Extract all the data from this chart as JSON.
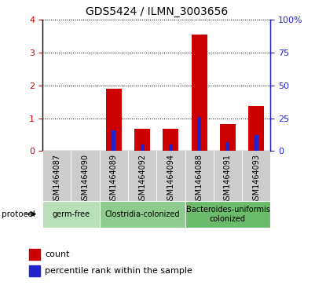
{
  "title": "GDS5424 / ILMN_3003656",
  "samples": [
    "GSM1464087",
    "GSM1464090",
    "GSM1464089",
    "GSM1464092",
    "GSM1464094",
    "GSM1464088",
    "GSM1464091",
    "GSM1464093"
  ],
  "count_values": [
    0.0,
    0.0,
    1.9,
    0.68,
    0.68,
    3.55,
    0.82,
    1.38
  ],
  "percentile_values": [
    0.0,
    0.0,
    16.0,
    5.0,
    5.0,
    26.0,
    7.0,
    12.0
  ],
  "left_ylim": [
    0,
    4
  ],
  "left_yticks": [
    0,
    1,
    2,
    3,
    4
  ],
  "right_ylim": [
    0,
    100
  ],
  "right_yticks": [
    0,
    25,
    50,
    75,
    100
  ],
  "right_yticklabels": [
    "0",
    "25",
    "50",
    "75",
    "100%"
  ],
  "bar_color": "#cc0000",
  "percentile_color": "#2222cc",
  "bar_width": 0.55,
  "groups": [
    {
      "label": "germ-free",
      "indices": [
        0,
        1
      ],
      "color": "#b8e0b8"
    },
    {
      "label": "Clostridia-colonized",
      "indices": [
        2,
        3,
        4
      ],
      "color": "#8dcc8d"
    },
    {
      "label": "Bacteroides-uniformis\ncolonized",
      "indices": [
        5,
        6,
        7
      ],
      "color": "#6abb6a"
    }
  ],
  "protocol_label": "protocol",
  "legend_count_label": "count",
  "legend_percentile_label": "percentile rank within the sample",
  "tick_color_left": "#cc0000",
  "tick_color_right": "#2222cc",
  "tick_bg_color": "#cccccc",
  "title_fontsize": 10,
  "axis_fontsize": 8,
  "tick_fontsize": 7
}
